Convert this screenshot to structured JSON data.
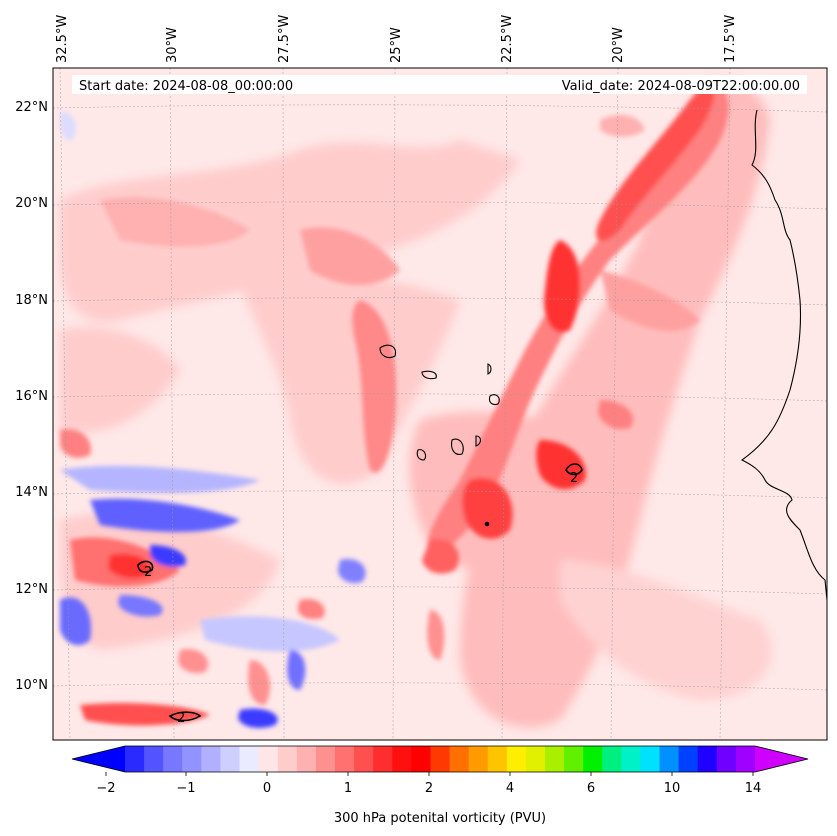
{
  "header": {
    "start_date": "Start date: 2024-08-08_00:00:00",
    "valid_date": "Valid_date: 2024-08-09T22:00:00.00"
  },
  "map": {
    "lon_labels": [
      "32.5°W",
      "30°W",
      "27.5°W",
      "25°W",
      "22.5°W",
      "20°W",
      "17.5°W"
    ],
    "lat_labels": [
      "22°N",
      "20°N",
      "18°N",
      "16°N",
      "14°N",
      "12°N",
      "10°N"
    ],
    "contour_labels": [
      "2",
      "2",
      "2"
    ],
    "gridlines": true
  },
  "colorbar": {
    "label": "300 hPa potenital vorticity (PVU)",
    "tick_labels": [
      "−2",
      "−1",
      "0",
      "1",
      "2",
      "4",
      "6",
      "10",
      "14"
    ],
    "colors": [
      "#0000ff",
      "#2a2aff",
      "#5555ff",
      "#7777ff",
      "#9393ff",
      "#b0b0ff",
      "#cfcfff",
      "#ebebff",
      "#ffe6e6",
      "#ffcccc",
      "#ffb0b0",
      "#ff9090",
      "#ff7070",
      "#ff5050",
      "#ff2e2e",
      "#ff1010",
      "#ff0000",
      "#ff3a00",
      "#ff7000",
      "#ff9a00",
      "#ffc400",
      "#ffee00",
      "#e0f000",
      "#a8f000",
      "#60f000",
      "#00f000",
      "#00f080",
      "#00f0c8",
      "#00e0ff",
      "#0090ff",
      "#0040ff",
      "#2000ff",
      "#7000ff",
      "#a000ff",
      "#d000ff"
    ]
  }
}
